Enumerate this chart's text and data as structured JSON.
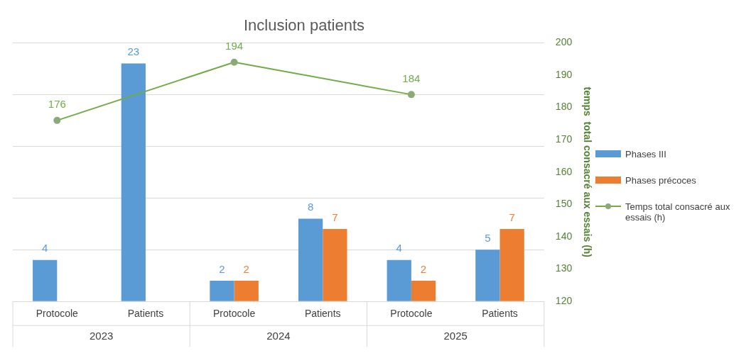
{
  "chart_data": {
    "type": "bar",
    "title": "Inclusion patients",
    "y2label": "temps  total consacré aux essais (h)",
    "categories": [
      "Protocole",
      "Patients",
      "Protocole",
      "Patients",
      "Protocole",
      "Patients"
    ],
    "annotations": [
      "2023",
      "2024",
      "2025"
    ],
    "series": [
      {
        "name": "Phases III",
        "color": "#5b9bd5",
        "values": [
          4,
          23,
          2,
          8,
          4,
          5
        ]
      },
      {
        "name": "Phases précoces",
        "color": "#ed7d31",
        "values": [
          null,
          null,
          2,
          7,
          2,
          7
        ]
      },
      {
        "name": "Temps total consacré aux essais (h)",
        "type": "line",
        "axis": "y2",
        "color": "#70ad47",
        "values": [
          176,
          null,
          194,
          null,
          184,
          null
        ]
      }
    ],
    "ylim": [
      0,
      25
    ],
    "y2lim": [
      120,
      200
    ],
    "y2ticks": [
      120,
      130,
      140,
      150,
      160,
      170,
      180,
      190,
      200
    ],
    "tick_labels": [
      "x",
      "y2"
    ],
    "grid": "y",
    "legend": "right",
    "data_labels": true,
    "marker": "circle",
    "line_style": "solid"
  }
}
